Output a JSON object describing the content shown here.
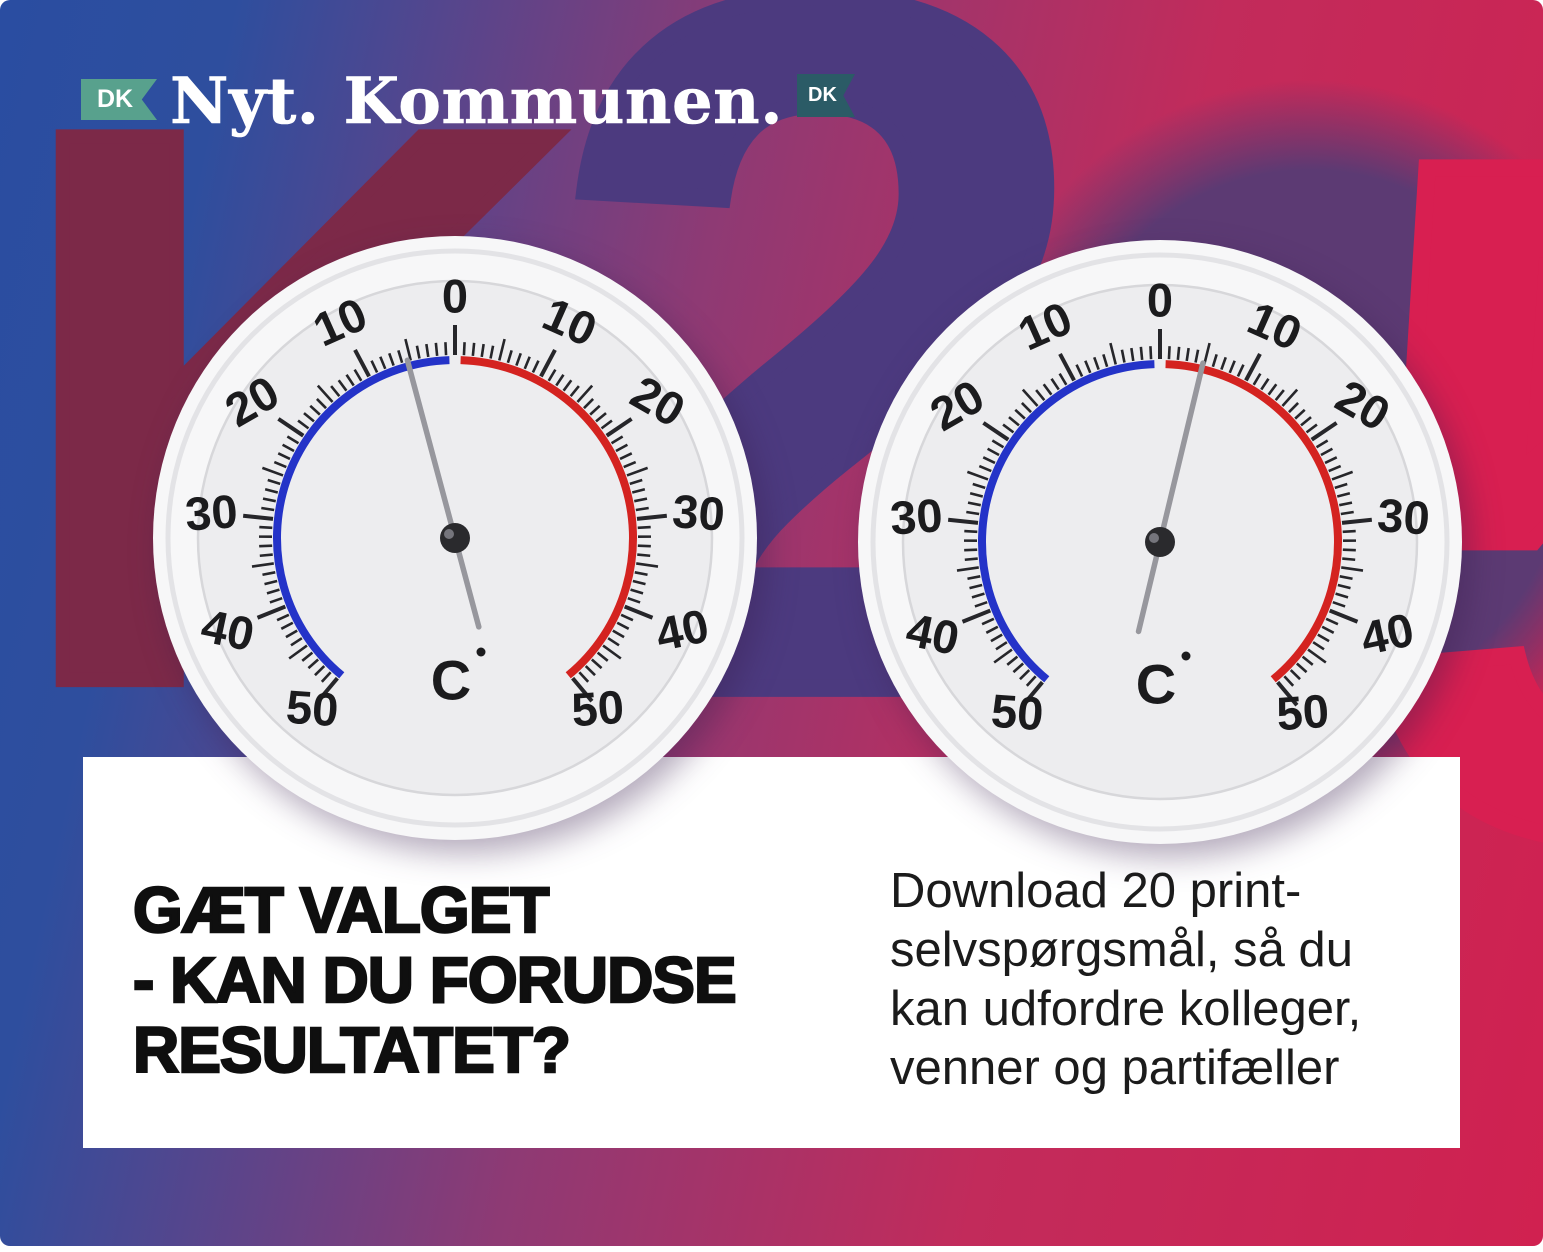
{
  "logo": {
    "tag_left": "DK",
    "word_1": "Nyt.",
    "word_2": "Kommunen.",
    "tag_right": "DK",
    "tag_left_color": "#58A18D",
    "tag_right_color": "#2B5B66"
  },
  "background": {
    "base_gradient": [
      "#2A4DA1",
      "#8E3A74",
      "#C22B5B",
      "#D02150"
    ],
    "purple_zone_color": "#5C3A73",
    "glyphs": [
      {
        "char": "K",
        "color": "#7C2948"
      },
      {
        "char": "2",
        "color": "#4C3A7F"
      },
      {
        "char": "5",
        "color": "#D81F51"
      }
    ]
  },
  "headline": {
    "lines": [
      "GÆT VALGET",
      "- KAN DU FORUDSE",
      "RESULTATET?"
    ],
    "color": "#0F0F0F"
  },
  "subtext": {
    "lines": [
      "Download 20 print-",
      "selvspørgsmål, så du",
      "kan udfordre kolleger,",
      "venner og partifæller"
    ],
    "color": "#1B1B1B"
  },
  "chart_data": {
    "type": "gauge",
    "title": "Two wall thermometers, C scale 0-50 on both cold and warm side",
    "gauges": [
      {
        "name": "left-thermometer",
        "unit": "C",
        "reading_celsius": -5,
        "needle_angle_deg": -15,
        "scale_labels_each_side": [
          "0",
          "10",
          "20",
          "30",
          "40",
          "50"
        ],
        "degrees_per_10_units": 28,
        "cold_arc_color": "#2433C8",
        "warm_arc_color": "#D42320"
      },
      {
        "name": "right-thermometer",
        "unit": "C",
        "reading_celsius": 5,
        "needle_angle_deg": 13.5,
        "scale_labels_each_side": [
          "0",
          "10",
          "20",
          "30",
          "40",
          "50"
        ],
        "degrees_per_10_units": 28,
        "cold_arc_color": "#2433C8",
        "warm_arc_color": "#D42320"
      }
    ]
  }
}
